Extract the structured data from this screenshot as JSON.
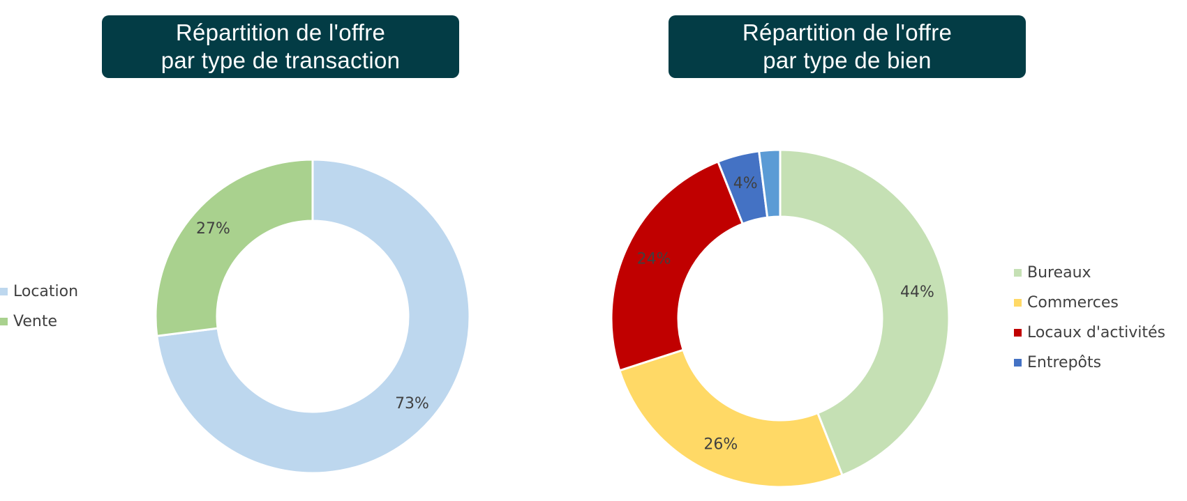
{
  "chart_data": [
    {
      "type": "pie",
      "subtype": "donut",
      "title_lines": [
        "Répartition de l'offre",
        "par type de transaction"
      ],
      "categories": [
        "Location",
        "Vente"
      ],
      "values": [
        73,
        27
      ],
      "labels": [
        "73%",
        "27%"
      ],
      "colors": [
        "#bdd7ee",
        "#a9d18e"
      ],
      "legend_position": "left"
    },
    {
      "type": "pie",
      "subtype": "donut",
      "title_lines": [
        "Répartition de l'offre",
        "par type de bien"
      ],
      "categories": [
        "Bureaux",
        "Commerces",
        "Locaux d'activités",
        "Entrepôts",
        ""
      ],
      "values": [
        44,
        26,
        24,
        4,
        2
      ],
      "labels": [
        "44%",
        "26%",
        "24%",
        "4%",
        ""
      ],
      "colors": [
        "#c5e0b4",
        "#ffd966",
        "#c00000",
        "#4472c4",
        "#5b9bd5"
      ],
      "legend_position": "right"
    }
  ]
}
